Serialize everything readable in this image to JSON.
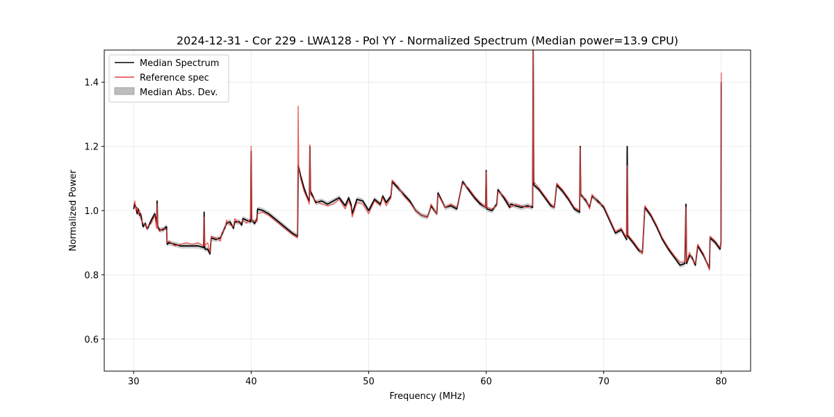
{
  "chart_data": {
    "type": "line",
    "title": "2024-12-31 - Cor 229 - LWA128 - Pol YY - Normalized Spectrum (Median power=13.9 CPU)",
    "xlabel": "Frequency (MHz)",
    "ylabel": "Normalized Power",
    "xlim": [
      27.5,
      82.5
    ],
    "ylim": [
      0.5,
      1.5
    ],
    "xticks": [
      30,
      40,
      50,
      60,
      70,
      80
    ],
    "yticks": [
      0.6,
      0.8,
      1.0,
      1.2,
      1.4
    ],
    "xtick_labels": [
      "30",
      "40",
      "50",
      "60",
      "70",
      "80"
    ],
    "ytick_labels": [
      "0.6",
      "0.8",
      "1.0",
      "1.2",
      "1.4"
    ],
    "grid": true,
    "legend_position": "top-left",
    "legend": [
      {
        "label": "Median Spectrum",
        "kind": "line",
        "color": "#000000"
      },
      {
        "label": "Reference spec",
        "kind": "line",
        "color": "#e8413f"
      },
      {
        "label": "Median Abs. Dev.",
        "kind": "patch",
        "color": "#bdbdbd"
      }
    ],
    "series": [
      {
        "name": "Median Spectrum",
        "color": "#000000",
        "x": [
          30.0,
          30.1,
          30.2,
          30.3,
          30.4,
          30.5,
          30.6,
          30.8,
          31.0,
          31.1,
          31.2,
          31.5,
          31.8,
          31.95,
          32.0,
          32.05,
          32.2,
          32.5,
          32.8,
          32.85,
          33.0,
          33.5,
          34.0,
          34.5,
          35.0,
          35.5,
          35.95,
          36.0,
          36.05,
          36.3,
          36.5,
          36.6,
          37.0,
          37.4,
          37.5,
          37.8,
          37.9,
          38.2,
          38.5,
          38.6,
          39.0,
          39.2,
          39.3,
          39.6,
          39.95,
          40.0,
          40.05,
          40.3,
          40.5,
          40.55,
          41.0,
          41.5,
          42.0,
          42.5,
          43.0,
          43.5,
          43.95,
          44.0,
          44.05,
          44.2,
          44.5,
          44.8,
          44.95,
          45.0,
          45.05,
          45.5,
          46.0,
          46.5,
          47.0,
          47.5,
          48.0,
          48.3,
          48.5,
          48.6,
          49.0,
          49.5,
          50.0,
          50.5,
          51.0,
          51.2,
          51.5,
          51.9,
          52.0,
          52.5,
          53.0,
          53.5,
          54.0,
          54.5,
          55.0,
          55.2,
          55.3,
          55.8,
          55.9,
          56.5,
          57.0,
          57.5,
          58.0,
          58.5,
          59.0,
          59.5,
          59.95,
          60.0,
          60.05,
          60.5,
          60.9,
          61.0,
          61.5,
          62.0,
          62.1,
          62.5,
          63.0,
          63.5,
          63.95,
          64.0,
          64.05,
          64.5,
          65.0,
          65.5,
          65.8,
          66.0,
          66.5,
          67.0,
          67.5,
          67.95,
          68.0,
          68.05,
          68.5,
          68.8,
          69.0,
          69.5,
          70.0,
          70.5,
          71.0,
          71.5,
          71.95,
          72.0,
          72.05,
          72.5,
          73.0,
          73.3,
          73.5,
          74.0,
          74.5,
          75.0,
          75.5,
          76.0,
          76.5,
          76.9,
          77.0,
          77.05,
          77.3,
          77.5,
          77.8,
          78.0,
          78.5,
          79.0,
          79.05,
          79.5,
          79.9,
          79.98,
          80.0
        ],
        "y": [
          1.005,
          1.02,
          1.01,
          0.99,
          1.005,
          0.985,
          0.99,
          0.95,
          0.96,
          0.945,
          0.945,
          0.97,
          0.99,
          0.96,
          1.03,
          0.95,
          0.94,
          0.94,
          0.95,
          0.895,
          0.9,
          0.895,
          0.89,
          0.89,
          0.89,
          0.89,
          0.885,
          0.995,
          0.88,
          0.88,
          0.865,
          0.915,
          0.91,
          0.915,
          0.925,
          0.95,
          0.96,
          0.965,
          0.945,
          0.965,
          0.965,
          0.955,
          0.975,
          0.97,
          0.965,
          1.185,
          0.97,
          0.96,
          0.975,
          1.005,
          1.0,
          0.99,
          0.975,
          0.96,
          0.945,
          0.93,
          0.92,
          1.14,
          1.135,
          1.11,
          1.07,
          1.04,
          1.03,
          1.2,
          1.06,
          1.025,
          1.03,
          1.02,
          1.03,
          1.04,
          1.015,
          1.04,
          1.02,
          0.99,
          1.035,
          1.03,
          1.0,
          1.035,
          1.02,
          1.045,
          1.025,
          1.045,
          1.09,
          1.07,
          1.05,
          1.03,
          1.0,
          0.985,
          0.98,
          1.0,
          1.015,
          0.99,
          1.055,
          1.01,
          1.015,
          1.005,
          1.09,
          1.065,
          1.04,
          1.02,
          1.01,
          1.125,
          1.005,
          1.0,
          1.02,
          1.065,
          1.04,
          1.01,
          1.02,
          1.015,
          1.01,
          1.015,
          1.01,
          1.5,
          1.08,
          1.065,
          1.04,
          1.015,
          1.01,
          1.08,
          1.06,
          1.035,
          1.005,
          0.995,
          1.2,
          1.05,
          1.03,
          1.01,
          1.045,
          1.03,
          1.01,
          0.97,
          0.93,
          0.94,
          0.91,
          1.2,
          0.92,
          0.9,
          0.875,
          0.87,
          1.01,
          0.985,
          0.95,
          0.91,
          0.88,
          0.855,
          0.83,
          0.835,
          1.02,
          0.835,
          0.86,
          0.855,
          0.83,
          0.89,
          0.86,
          0.82,
          0.915,
          0.9,
          0.88,
          0.9,
          1.4
        ]
      },
      {
        "name": "Reference spec",
        "color": "#e8413f",
        "x": [
          30.0,
          30.1,
          30.2,
          30.3,
          30.4,
          30.5,
          30.6,
          30.8,
          31.0,
          31.1,
          31.2,
          31.5,
          31.8,
          31.95,
          32.0,
          32.05,
          32.2,
          32.5,
          32.8,
          32.85,
          33.0,
          33.5,
          34.0,
          34.5,
          35.0,
          35.5,
          35.95,
          36.0,
          36.05,
          36.3,
          36.5,
          36.6,
          37.0,
          37.4,
          37.5,
          37.8,
          37.9,
          38.2,
          38.5,
          38.6,
          39.0,
          39.2,
          39.3,
          39.6,
          39.95,
          40.0,
          40.05,
          40.3,
          40.5,
          40.55,
          41.0,
          41.5,
          42.0,
          42.5,
          43.0,
          43.5,
          43.95,
          44.0,
          44.05,
          44.2,
          44.5,
          44.8,
          44.95,
          45.0,
          45.05,
          45.5,
          46.0,
          46.5,
          47.0,
          47.5,
          48.0,
          48.3,
          48.5,
          48.6,
          49.0,
          49.5,
          50.0,
          50.5,
          51.0,
          51.2,
          51.5,
          51.9,
          52.0,
          52.5,
          53.0,
          53.5,
          54.0,
          54.5,
          55.0,
          55.2,
          55.3,
          55.8,
          55.9,
          56.5,
          57.0,
          57.5,
          58.0,
          58.5,
          59.0,
          59.5,
          59.95,
          60.0,
          60.05,
          60.5,
          60.9,
          61.0,
          61.5,
          62.0,
          62.1,
          62.5,
          63.0,
          63.5,
          63.95,
          64.0,
          64.05,
          64.5,
          65.0,
          65.5,
          65.8,
          66.0,
          66.5,
          67.0,
          67.5,
          67.95,
          68.0,
          68.05,
          68.5,
          68.8,
          69.0,
          69.5,
          70.0,
          70.5,
          71.0,
          71.5,
          71.95,
          72.0,
          72.05,
          72.5,
          73.0,
          73.3,
          73.5,
          74.0,
          74.5,
          75.0,
          75.5,
          76.0,
          76.5,
          76.9,
          77.0,
          77.05,
          77.3,
          77.5,
          77.8,
          78.0,
          78.5,
          79.0,
          79.05,
          79.5,
          79.9,
          79.98,
          80.0
        ],
        "y": [
          1.015,
          1.03,
          1.0,
          1.01,
          0.99,
          1.0,
          0.975,
          0.96,
          0.955,
          0.945,
          0.95,
          0.96,
          0.985,
          0.945,
          1.02,
          0.945,
          0.935,
          0.945,
          0.94,
          0.9,
          0.905,
          0.89,
          0.895,
          0.9,
          0.895,
          0.9,
          0.89,
          0.98,
          0.89,
          0.9,
          0.87,
          0.92,
          0.915,
          0.905,
          0.93,
          0.945,
          0.97,
          0.955,
          0.95,
          0.975,
          0.96,
          0.965,
          0.97,
          0.96,
          0.975,
          1.2,
          0.965,
          0.97,
          0.965,
          0.99,
          0.995,
          0.985,
          0.97,
          0.955,
          0.94,
          0.925,
          0.915,
          1.325,
          1.13,
          1.1,
          1.06,
          1.035,
          1.02,
          1.205,
          1.05,
          1.03,
          1.02,
          1.015,
          1.02,
          1.035,
          1.005,
          1.03,
          1.01,
          0.98,
          1.025,
          1.02,
          0.99,
          1.03,
          1.015,
          1.04,
          1.015,
          1.04,
          1.095,
          1.075,
          1.045,
          1.025,
          1.0,
          0.985,
          0.98,
          1.0,
          1.02,
          0.99,
          1.05,
          1.01,
          1.02,
          1.01,
          1.085,
          1.07,
          1.045,
          1.025,
          1.01,
          1.12,
          1.01,
          1.005,
          1.015,
          1.06,
          1.045,
          1.02,
          1.01,
          1.02,
          1.015,
          1.01,
          1.015,
          1.5,
          1.09,
          1.07,
          1.045,
          1.02,
          1.01,
          1.085,
          1.065,
          1.04,
          1.01,
          1.0,
          1.195,
          1.045,
          1.035,
          1.005,
          1.05,
          1.025,
          1.015,
          0.975,
          0.935,
          0.945,
          0.915,
          1.14,
          0.925,
          0.905,
          0.88,
          0.865,
          1.015,
          0.99,
          0.955,
          0.915,
          0.885,
          0.86,
          0.84,
          0.84,
          1.01,
          0.84,
          0.87,
          0.85,
          0.835,
          0.895,
          0.865,
          0.815,
          0.92,
          0.905,
          0.885,
          0.895,
          1.43
        ]
      }
    ]
  }
}
